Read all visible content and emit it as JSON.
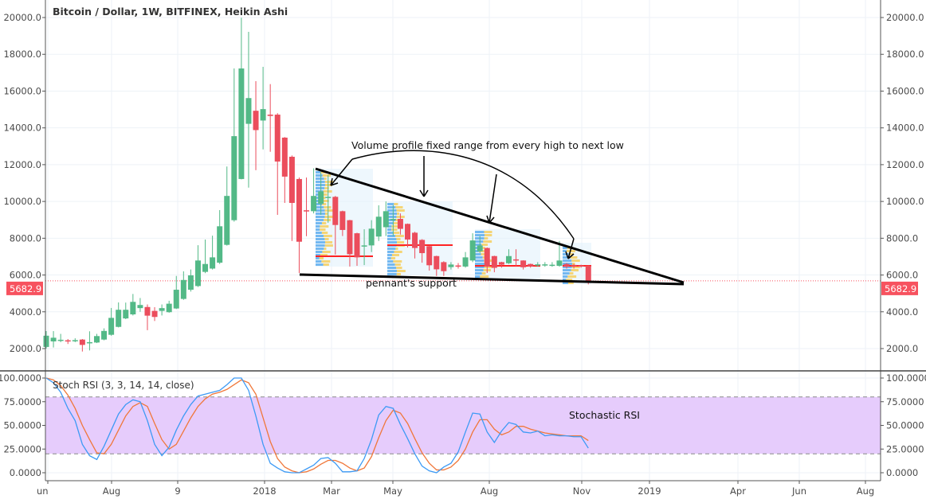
{
  "header": {
    "title": "Bitcoin / Dollar, 1W, BITFINEX, Heikin Ashi"
  },
  "colors": {
    "up": "#53b987",
    "down": "#eb4d5c",
    "k_line": "#3d9af5",
    "d_line": "#f0773a",
    "band": "#e6ccfc",
    "last_price": "#f7525f"
  },
  "last_price": {
    "value": 5682.9,
    "label": "5682.9"
  },
  "annotations": {
    "volume_profile": "Volume profile fixed range from every high to next low",
    "support": "pennant's support",
    "stoch": "Stochastic RSI"
  },
  "stoch": {
    "legend": "Stoch RSI (3, 3, 14, 14, close)"
  },
  "chart_data": [
    {
      "type": "candlestick",
      "title": "Bitcoin / Dollar, 1W, BITFINEX, Heikin Ashi",
      "ylim": [
        1200,
        20800
      ],
      "yticks": [
        {
          "v": 20000,
          "label": "20000.0"
        },
        {
          "v": 18000,
          "label": "18000.0"
        },
        {
          "v": 16000,
          "label": "16000.0"
        },
        {
          "v": 14000,
          "label": "14000.0"
        },
        {
          "v": 12000,
          "label": "12000.0"
        },
        {
          "v": 10000,
          "label": "10000.0"
        },
        {
          "v": 8000,
          "label": "8000.0"
        },
        {
          "v": 6000,
          "label": "6000.0"
        },
        {
          "v": 4000,
          "label": "4000.0"
        },
        {
          "v": 2000,
          "label": "2000.0"
        }
      ],
      "xticks": [
        "un",
        "Aug",
        "9",
        "2018",
        "Mar",
        "May",
        "Aug",
        "Nov",
        "2019",
        "Apr",
        "Jun",
        "Aug"
      ],
      "candles_ohlc": [
        [
          2090,
          2950,
          2000,
          2700
        ],
        [
          2390,
          2950,
          2060,
          2590
        ],
        [
          2440,
          2800,
          2350,
          2480
        ],
        [
          2450,
          2520,
          2250,
          2400
        ],
        [
          2420,
          2560,
          2350,
          2460
        ],
        [
          2490,
          2520,
          1840,
          2200
        ],
        [
          2300,
          2940,
          1900,
          2350
        ],
        [
          2330,
          2800,
          2300,
          2680
        ],
        [
          2490,
          3100,
          2450,
          2960
        ],
        [
          2750,
          4210,
          2700,
          3670
        ],
        [
          3180,
          4510,
          3150,
          4110
        ],
        [
          3640,
          4500,
          3600,
          4110
        ],
        [
          3860,
          4970,
          3800,
          4540
        ],
        [
          4200,
          4750,
          4000,
          4370
        ],
        [
          4260,
          4400,
          3000,
          3790
        ],
        [
          4050,
          4250,
          3500,
          3720
        ],
        [
          4050,
          4400,
          3800,
          4200
        ],
        [
          3980,
          4600,
          3950,
          4440
        ],
        [
          4180,
          5950,
          4150,
          5200
        ],
        [
          4700,
          6200,
          4650,
          5730
        ],
        [
          5200,
          6300,
          5100,
          5980
        ],
        [
          5400,
          7620,
          5350,
          6790
        ],
        [
          6170,
          7930,
          6100,
          6600
        ],
        [
          6350,
          8140,
          6300,
          6960
        ],
        [
          6670,
          9530,
          6600,
          8650
        ],
        [
          7640,
          11900,
          7600,
          10300
        ],
        [
          8980,
          17230,
          8900,
          13550
        ],
        [
          11220,
          19990,
          11200,
          17230
        ],
        [
          14220,
          19220,
          10750,
          15620
        ],
        [
          14930,
          16540,
          11700,
          13880
        ],
        [
          14400,
          17320,
          12830,
          15020
        ],
        [
          14720,
          16380,
          12700,
          14650
        ],
        [
          14720,
          14800,
          9270,
          12170
        ],
        [
          13470,
          13500,
          9920,
          11350
        ],
        [
          12430,
          12500,
          7850,
          9920
        ],
        [
          11220,
          11300,
          6110,
          7810
        ],
        [
          9520,
          11300,
          8110,
          9500
        ],
        [
          9470,
          11800,
          9350,
          10300
        ],
        [
          9870,
          11580,
          9270,
          10550
        ],
        [
          10200,
          11430,
          8840,
          10250
        ],
        [
          10250,
          10300,
          7110,
          8720
        ],
        [
          9470,
          9500,
          8120,
          8450
        ],
        [
          8980,
          9000,
          6460,
          7130
        ],
        [
          8270,
          8300,
          6500,
          6960
        ],
        [
          7580,
          8490,
          6540,
          7610
        ],
        [
          7610,
          8980,
          7250,
          8520
        ],
        [
          8090,
          9790,
          7850,
          9170
        ],
        [
          8600,
          10000,
          8120,
          9470
        ],
        [
          9030,
          9790,
          8120,
          9050
        ],
        [
          9050,
          9350,
          8200,
          8510
        ],
        [
          8780,
          8800,
          7500,
          7930
        ],
        [
          8300,
          8350,
          6900,
          7470
        ],
        [
          7910,
          7950,
          6670,
          7190
        ],
        [
          7570,
          7600,
          6240,
          6530
        ],
        [
          7030,
          7050,
          5950,
          6310
        ],
        [
          6700,
          6750,
          5950,
          6210
        ],
        [
          6430,
          6700,
          6300,
          6570
        ],
        [
          6520,
          6650,
          6350,
          6480
        ],
        [
          6460,
          7250,
          6400,
          6960
        ],
        [
          6790,
          8270,
          6700,
          7880
        ],
        [
          7290,
          8120,
          7200,
          7610
        ],
        [
          7470,
          7500,
          6110,
          6460
        ],
        [
          7030,
          7050,
          6150,
          6390
        ],
        [
          6700,
          6720,
          6400,
          6560
        ],
        [
          6640,
          7400,
          6600,
          7030
        ],
        [
          6850,
          7400,
          6450,
          6820
        ],
        [
          6790,
          6800,
          6300,
          6420
        ],
        [
          6600,
          6620,
          6400,
          6460
        ],
        [
          6540,
          6700,
          6450,
          6580
        ],
        [
          6540,
          6700,
          6450,
          6580
        ],
        [
          6520,
          6700,
          6450,
          6560
        ],
        [
          6500,
          7850,
          6450,
          6790
        ],
        [
          6600,
          6650,
          6350,
          6450
        ],
        [
          6550,
          6600,
          6350,
          6480
        ],
        [
          6520,
          6560,
          6400,
          6500
        ],
        [
          6500,
          6520,
          5490,
          5682.9
        ]
      ]
    },
    {
      "type": "line",
      "title": "Stoch RSI (3, 3, 14, 14, close)",
      "ylim": [
        0,
        100
      ],
      "band": [
        20,
        80
      ],
      "yticks": [
        {
          "v": 100,
          "label": "100.0000"
        },
        {
          "v": 75,
          "label": "75.0000"
        },
        {
          "v": 50,
          "label": "50.0000"
        },
        {
          "v": 25,
          "label": "25.0000"
        },
        {
          "v": 0,
          "label": "0.0000"
        }
      ],
      "series": [
        {
          "name": "K",
          "values": [
            100,
            95,
            85,
            68,
            55,
            30,
            18,
            14,
            28,
            45,
            62,
            72,
            77,
            75,
            55,
            30,
            18,
            27,
            45,
            60,
            72,
            81,
            83,
            85,
            87,
            93,
            100,
            100,
            87,
            60,
            30,
            10,
            5,
            1,
            0,
            0,
            4,
            8,
            15,
            16,
            10,
            1,
            1,
            2,
            15,
            35,
            61,
            70,
            68,
            51,
            36,
            20,
            7,
            2,
            0,
            6,
            10,
            22,
            43,
            63,
            62,
            43,
            32,
            44,
            53,
            51,
            43,
            42,
            44,
            39,
            40,
            39,
            39,
            38,
            38,
            26
          ]
        },
        {
          "name": "D",
          "values": [
            100,
            98,
            92,
            82,
            68,
            50,
            35,
            21,
            20,
            30,
            45,
            60,
            70,
            74,
            70,
            52,
            35,
            25,
            30,
            44,
            58,
            70,
            78,
            83,
            85,
            88,
            93,
            98,
            95,
            83,
            58,
            33,
            15,
            6,
            2,
            0,
            1,
            4,
            9,
            13,
            13,
            10,
            5,
            2,
            5,
            17,
            37,
            55,
            66,
            63,
            52,
            36,
            21,
            10,
            3,
            3,
            6,
            13,
            25,
            43,
            56,
            56,
            46,
            40,
            43,
            49,
            49,
            46,
            44,
            42,
            41,
            40,
            39,
            39,
            39,
            34
          ]
        }
      ]
    }
  ]
}
